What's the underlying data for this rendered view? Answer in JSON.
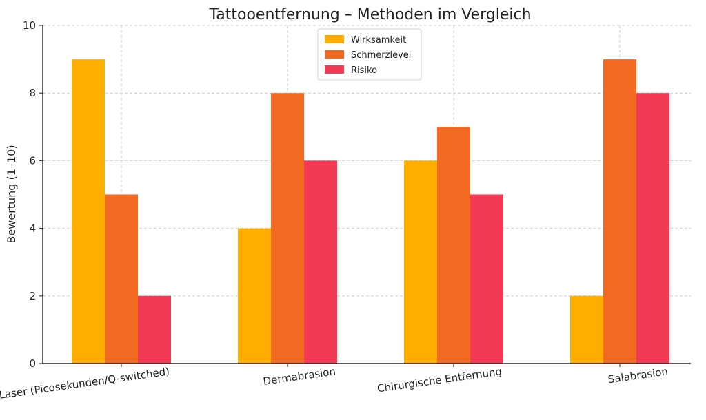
{
  "chart_data": {
    "type": "bar",
    "title": "Tattooentfernung – Methoden im Vergleich",
    "xlabel": "",
    "ylabel": "Bewertung (1–10)",
    "ylim": [
      0,
      10
    ],
    "yticks": [
      "0",
      "2",
      "4",
      "6",
      "8",
      "10"
    ],
    "categories": [
      "Laser (Picosekunden/Q-switched)",
      "Dermabrasion",
      "Chirurgische Entfernung",
      "Salabrasion"
    ],
    "series": [
      {
        "name": "Wirksamkeit",
        "color": "#FFAD00",
        "values": [
          9,
          4,
          6,
          2
        ]
      },
      {
        "name": "Schmerzlevel",
        "color": "#F26A21",
        "values": [
          5,
          8,
          7,
          9
        ]
      },
      {
        "name": "Risiko",
        "color": "#F23A55",
        "values": [
          2,
          6,
          5,
          8
        ]
      }
    ],
    "grid": true,
    "legend_position": "top-center"
  }
}
